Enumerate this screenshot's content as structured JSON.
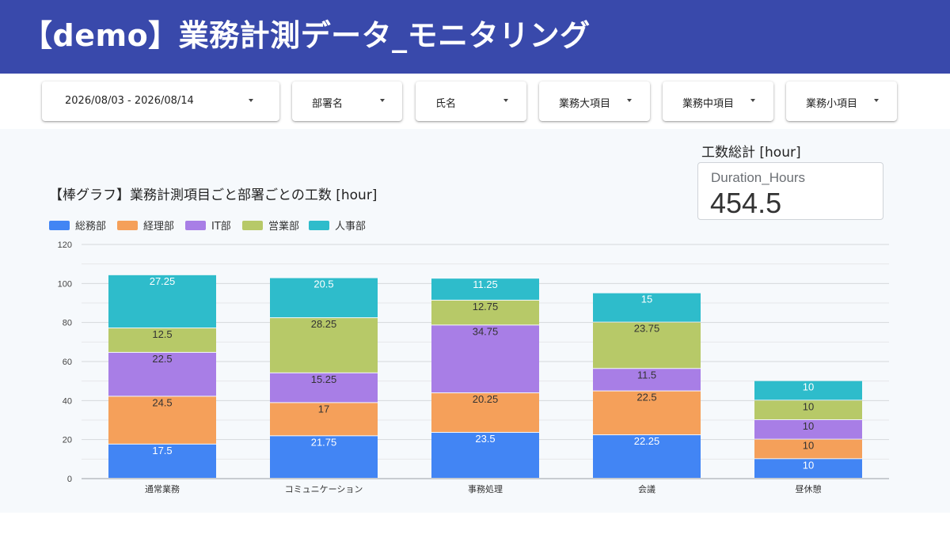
{
  "header": {
    "title": "【demo】業務計測データ_モニタリング"
  },
  "filters": [
    {
      "label": "2026/08/03 - 2026/08/14"
    },
    {
      "label": "部署名"
    },
    {
      "label": "氏名"
    },
    {
      "label": "業務大項目"
    },
    {
      "label": "業務中項目"
    },
    {
      "label": "業務小項目"
    }
  ],
  "kpi": {
    "section_label": "工数総計 [hour]",
    "metric_name": "Duration_Hours",
    "value": "454.5"
  },
  "colors": {
    "header_bg": "#3949ab",
    "series": [
      "#4285f4",
      "#f5a05a",
      "#a87ee6",
      "#b7c968",
      "#2ebccb"
    ]
  },
  "chart_data": {
    "type": "bar",
    "stacked": true,
    "title": "【棒グラフ】業務計測項目ごと部署ごとの工数 [hour]",
    "categories": [
      "通常業務",
      "コミュニケーション",
      "事務処理",
      "会議",
      "昼休憩"
    ],
    "series": [
      {
        "name": "総務部",
        "color": "#4285f4",
        "values": [
          17.5,
          21.75,
          23.5,
          22.25,
          10
        ]
      },
      {
        "name": "経理部",
        "color": "#f5a05a",
        "values": [
          24.5,
          17,
          20.25,
          22.5,
          10
        ]
      },
      {
        "name": "IT部",
        "color": "#a87ee6",
        "values": [
          22.5,
          15.25,
          34.75,
          11.5,
          10
        ]
      },
      {
        "name": "営業部",
        "color": "#b7c968",
        "values": [
          12.5,
          28.25,
          12.75,
          23.75,
          10
        ]
      },
      {
        "name": "人事部",
        "color": "#2ebccb",
        "values": [
          27.25,
          20.5,
          11.25,
          15,
          10
        ]
      }
    ],
    "ylim": [
      0,
      120
    ],
    "yticks": [
      0,
      20,
      40,
      60,
      80,
      100,
      120
    ],
    "grid": true,
    "legend_position": "top-left"
  }
}
